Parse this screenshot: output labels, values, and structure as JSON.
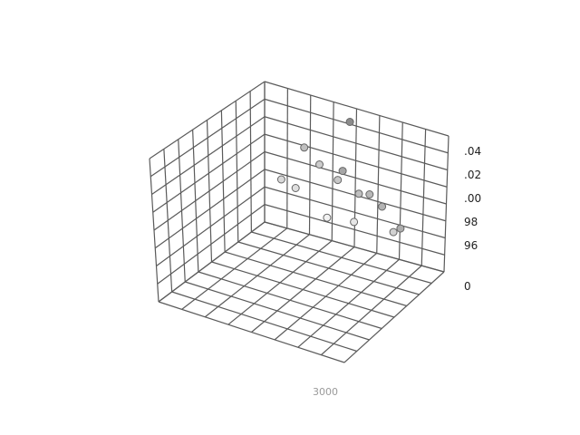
{
  "chart_data": {
    "type": "scatter",
    "projection": "3d",
    "grid": true,
    "z_ticks": [
      ".04",
      ".02",
      ".00",
      "98",
      "96"
    ],
    "side_label": "0",
    "bottom_label": "3000⁠⁠⁠⁠",
    "points": [
      {
        "x": 0.5,
        "y": 0.0,
        "z": 1.035,
        "shade": 0.55
      },
      {
        "x": 0.2,
        "y": 0.0,
        "z": 1.005,
        "shade": 0.75
      },
      {
        "x": 0.5,
        "y": 0.4,
        "z": 1.0,
        "shade": 0.65
      },
      {
        "x": 0.3,
        "y": 0.0,
        "z": 0.995,
        "shade": 0.8
      },
      {
        "x": 0.45,
        "y": 0.25,
        "z": 0.99,
        "shade": 0.78
      },
      {
        "x": 0.6,
        "y": 0.35,
        "z": 0.985,
        "shade": 0.75
      },
      {
        "x": 0.7,
        "y": 0.6,
        "z": 0.99,
        "shade": 0.72
      },
      {
        "x": 0.8,
        "y": 0.75,
        "z": 0.985,
        "shade": 0.7
      },
      {
        "x": 0.95,
        "y": 1.0,
        "z": 0.975,
        "shade": 0.68
      },
      {
        "x": 0.05,
        "y": 0.0,
        "z": 0.975,
        "shade": 0.85
      },
      {
        "x": 0.15,
        "y": 0.05,
        "z": 0.972,
        "shade": 0.87
      },
      {
        "x": 0.85,
        "y": 0.55,
        "z": 0.965,
        "shade": 0.82
      },
      {
        "x": 0.55,
        "y": 0.2,
        "z": 0.96,
        "shade": 0.9
      },
      {
        "x": 0.35,
        "y": 0.0,
        "z": 0.955,
        "shade": 0.95
      }
    ]
  }
}
